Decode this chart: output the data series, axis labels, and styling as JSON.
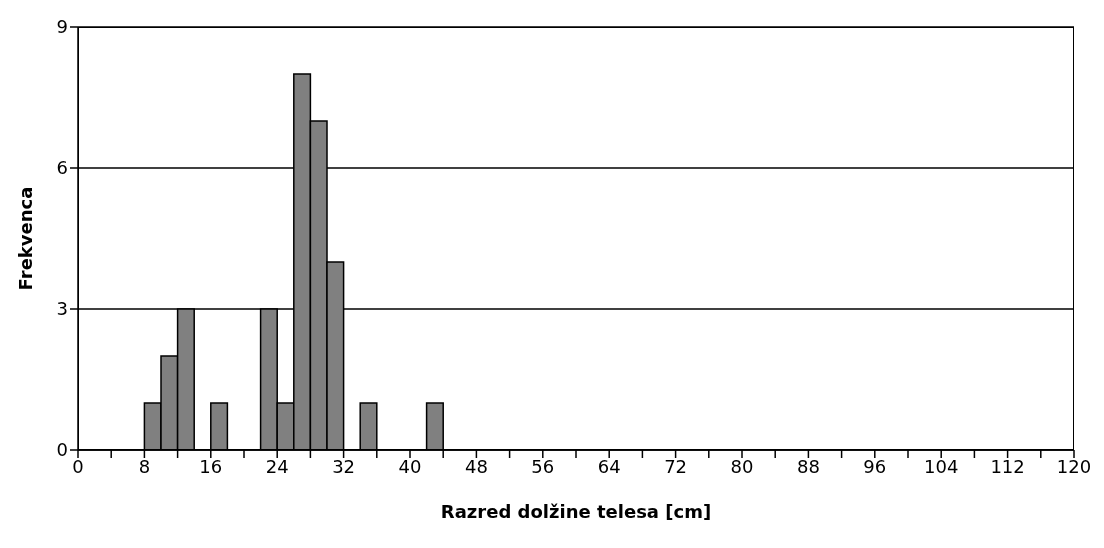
{
  "chart_data": {
    "type": "histogram",
    "xlabel": "Razred dolžine telesa [cm]",
    "ylabel": "Frekvenca",
    "bins": [
      8,
      10,
      12,
      14,
      16,
      18,
      20,
      22,
      24,
      26,
      28,
      30,
      32,
      34,
      36,
      38,
      40,
      42,
      44
    ],
    "values": [
      1,
      2,
      3,
      0,
      1,
      0,
      0,
      3,
      1,
      8,
      7,
      4,
      0,
      1,
      0,
      0,
      0,
      1
    ],
    "color": "#808080",
    "xlim": [
      0,
      120
    ],
    "xticks": [
      0,
      {
        "value": 4,
        "label": null
      },
      8,
      {
        "value": 12,
        "label": null
      },
      16,
      {
        "value": 20,
        "label": null
      },
      24,
      {
        "value": 28,
        "label": null
      },
      32,
      {
        "value": 36,
        "label": null
      },
      40,
      {
        "value": 44,
        "label": null
      },
      48,
      {
        "value": 52,
        "label": null
      },
      56,
      {
        "value": 60,
        "label": null
      },
      64,
      {
        "value": 68,
        "label": null
      },
      72,
      {
        "value": 76,
        "label": null
      },
      80,
      {
        "value": 84,
        "label": null
      },
      88,
      {
        "value": 92,
        "label": null
      },
      96,
      {
        "value": 100,
        "label": null
      },
      104,
      {
        "value": 108,
        "label": null
      },
      112,
      {
        "value": 116,
        "label": null
      },
      120
    ],
    "ylim": [
      0,
      9
    ],
    "yticks": [
      0,
      3,
      6,
      9
    ],
    "grid": "y"
  }
}
